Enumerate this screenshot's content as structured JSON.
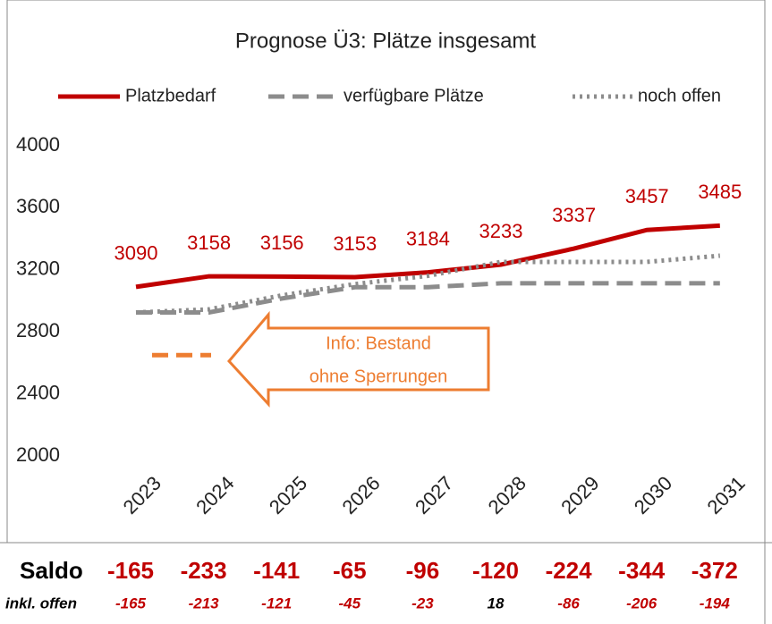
{
  "chart_data": {
    "type": "line",
    "title": "Prognose Ü3: Plätze insgesamt",
    "categories": [
      "2023",
      "2024",
      "2025",
      "2026",
      "2027",
      "2028",
      "2029",
      "2030",
      "2031"
    ],
    "series": [
      {
        "name": "Platzbedarf",
        "color": "#c00000",
        "style": "solid",
        "show_labels": true,
        "values": [
          3090,
          3158,
          3156,
          3153,
          3184,
          3233,
          3337,
          3457,
          3485
        ]
      },
      {
        "name": "verfügbare Plätze",
        "color": "#8c8c8c",
        "style": "dashed",
        "show_labels": false,
        "values": [
          2925,
          2925,
          3015,
          3088,
          3088,
          3113,
          3113,
          3113,
          3113
        ]
      },
      {
        "name": "noch offen",
        "color": "#8c8c8c",
        "style": "dotted",
        "show_labels": false,
        "values": [
          2925,
          2945,
          3035,
          3108,
          3161,
          3251,
          3251,
          3251,
          3291
        ]
      }
    ],
    "ylim": [
      2000,
      4000
    ],
    "yticks": [
      2000,
      2400,
      2800,
      3200,
      3600,
      4000
    ],
    "grid": false,
    "legend": "top",
    "annotation": {
      "lines": [
        "Info: Bestand",
        "ohne Sperrungen"
      ],
      "value": 2650,
      "color": "#ed7d31"
    }
  },
  "table": {
    "rows": [
      {
        "label": "Saldo",
        "values": [
          -165,
          -233,
          -141,
          -65,
          -96,
          -120,
          -224,
          -344,
          -372
        ]
      },
      {
        "label": "inkl. offen",
        "values": [
          -165,
          -213,
          -121,
          -45,
          -23,
          18,
          -86,
          -206,
          -194
        ]
      }
    ]
  }
}
